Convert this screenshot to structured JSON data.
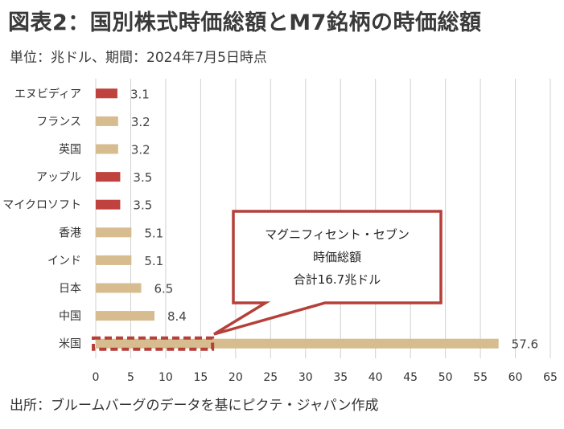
{
  "title": "図表2：国別株式時価総額とM7銘柄の時価総額",
  "subtitle": "単位：兆ドル、期間：2024年7月5日時点",
  "source": "出所：ブルームバーグのデータを基にピクテ・ジャパン作成",
  "colors": {
    "m7": "#c0423e",
    "country": "#d6bc8e",
    "callout_border": "#b5403a",
    "grid": "#d0d0d0"
  },
  "chart_data": {
    "type": "bar",
    "orientation": "horizontal",
    "categories": [
      "エヌビディア",
      "フランス",
      "英国",
      "アップル",
      "マイクロソフト",
      "香港",
      "インド",
      "日本",
      "中国",
      "米国"
    ],
    "values": [
      3.1,
      3.2,
      3.2,
      3.5,
      3.5,
      5.1,
      5.1,
      6.5,
      8.4,
      57.6
    ],
    "value_labels": [
      "3.1",
      "3.2",
      "3.2",
      "3.5",
      "3.5",
      "5.1",
      "5.1",
      "6.5",
      "8.4",
      "57.6"
    ],
    "groups": [
      "M7",
      "country",
      "country",
      "M7",
      "M7",
      "country",
      "country",
      "country",
      "country",
      "country"
    ],
    "xlim": [
      0,
      65
    ],
    "xticks": [
      "0",
      "5",
      "10",
      "15",
      "20",
      "25",
      "30",
      "35",
      "40",
      "45",
      "50",
      "55",
      "60",
      "65"
    ],
    "grid": "vertical",
    "callout": {
      "lines": [
        "マグニフィセント・セブン",
        "時価総額",
        "合計16.7兆ドル"
      ],
      "target_value": 16.7,
      "target_category": "米国"
    }
  }
}
